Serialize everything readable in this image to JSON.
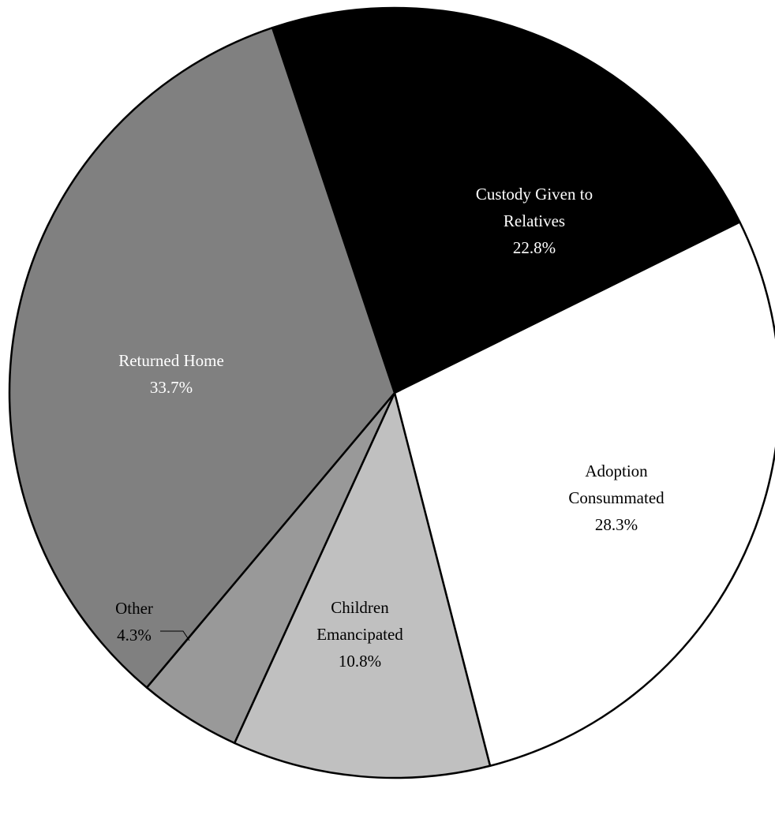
{
  "chart_data": {
    "type": "pie",
    "title": "",
    "slices": [
      {
        "label_lines": [
          "Custody Given to",
          "Relatives"
        ],
        "value": 22.8,
        "value_label": "22.8%",
        "color": "#000000",
        "text_color": "#ffffff"
      },
      {
        "label_lines": [
          "Adoption",
          "Consummated"
        ],
        "value": 28.3,
        "value_label": "28.3%",
        "color": "#ffffff",
        "text_color": "#000000"
      },
      {
        "label_lines": [
          "Children",
          "Emancipated"
        ],
        "value": 10.8,
        "value_label": "10.8%",
        "color": "#c0c0c0",
        "text_color": "#000000"
      },
      {
        "label_lines": [
          "Other"
        ],
        "value": 4.3,
        "value_label": "4.3%",
        "color": "#999999",
        "text_color": "#000000"
      },
      {
        "label_lines": [
          "Returned Home"
        ],
        "value": 33.7,
        "value_label": "33.7%",
        "color": "#808080",
        "text_color": "#ffffff"
      }
    ],
    "legend": "none",
    "labels": "on slices, Other labelled outside with leader line"
  }
}
